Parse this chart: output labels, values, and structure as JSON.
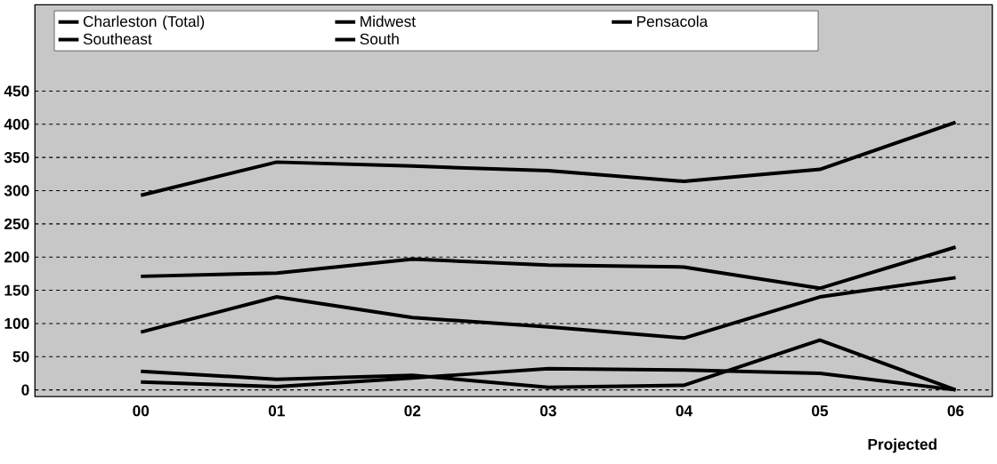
{
  "chart_data": {
    "type": "line",
    "categories": [
      "00",
      "01",
      "02",
      "03",
      "04",
      "05",
      "06"
    ],
    "series": [
      {
        "name": "Charleston (Total)",
        "color": "#000000",
        "values": [
          293,
          343,
          337,
          330,
          314,
          332,
          403
        ]
      },
      {
        "name": "Midwest",
        "color": "#000000",
        "values": [
          171,
          176,
          197,
          188,
          185,
          153,
          215
        ]
      },
      {
        "name": "Pensacola",
        "color": "#000000",
        "values": [
          87,
          140,
          109,
          95,
          78,
          140,
          169
        ]
      },
      {
        "name": "Southeast",
        "color": "#000000",
        "values": [
          28,
          16,
          22,
          4,
          7,
          75,
          0
        ]
      },
      {
        "name": "South",
        "color": "#000000",
        "values": [
          12,
          5,
          18,
          32,
          30,
          25,
          0
        ]
      }
    ],
    "ylim": [
      -10,
      580
    ],
    "yticks": [
      0,
      50,
      100,
      150,
      200,
      250,
      300,
      350,
      400,
      450
    ],
    "grid": "y",
    "legend": "top",
    "marker": "none",
    "line_style": "solid",
    "annotations": [
      "Projected"
    ]
  }
}
